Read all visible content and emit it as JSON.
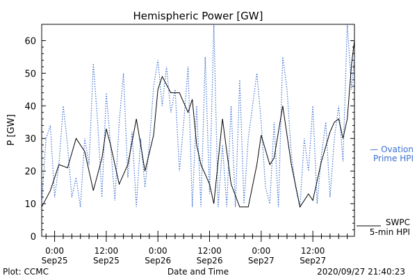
{
  "chart_data": {
    "type": "line",
    "title": "Hemispheric Power [GW]",
    "ylabel": "P [GW]",
    "xlabel": "Date and Time",
    "ylim": [
      0,
      65
    ],
    "yticks": [
      0,
      10,
      20,
      30,
      40,
      50,
      60
    ],
    "xlim": [
      "2020-09-24 21:00",
      "2020-09-27 21:40"
    ],
    "xticks": [
      {
        "time": "2020-09-25 00:00",
        "line1": "0:00",
        "line2": "Sep25"
      },
      {
        "time": "2020-09-25 12:00",
        "line1": "12:00",
        "line2": "Sep25"
      },
      {
        "time": "2020-09-26 00:00",
        "line1": "0:00",
        "line2": "Sep26"
      },
      {
        "time": "2020-09-26 12:00",
        "line1": "12:00",
        "line2": "Sep26"
      },
      {
        "time": "2020-09-27 00:00",
        "line1": "0:00",
        "line2": "Sep27"
      },
      {
        "time": "2020-09-27 12:00",
        "line1": "12:00",
        "line2": "Sep27"
      }
    ],
    "grid": false,
    "series": [
      {
        "name": "SWPC 5-min HPI",
        "style": "solid",
        "color": "#000000",
        "x": [
          "2020-09-24 21:00",
          "2020-09-24 23:00",
          "2020-09-25 01:00",
          "2020-09-25 03:00",
          "2020-09-25 05:00",
          "2020-09-25 07:00",
          "2020-09-25 09:00",
          "2020-09-25 11:00",
          "2020-09-25 12:00",
          "2020-09-25 13:00",
          "2020-09-25 15:00",
          "2020-09-25 17:00",
          "2020-09-25 19:00",
          "2020-09-25 21:00",
          "2020-09-25 23:00",
          "2020-09-26 00:00",
          "2020-09-26 01:00",
          "2020-09-26 03:00",
          "2020-09-26 05:00",
          "2020-09-26 07:00",
          "2020-09-26 08:00",
          "2020-09-26 09:00",
          "2020-09-26 10:00",
          "2020-09-26 12:00",
          "2020-09-26 13:00",
          "2020-09-26 15:00",
          "2020-09-26 17:00",
          "2020-09-26 19:00",
          "2020-09-26 21:00",
          "2020-09-26 23:00",
          "2020-09-27 00:00",
          "2020-09-27 02:00",
          "2020-09-27 03:00",
          "2020-09-27 05:00",
          "2020-09-27 07:00",
          "2020-09-27 09:00",
          "2020-09-27 11:00",
          "2020-09-27 12:00",
          "2020-09-27 14:00",
          "2020-09-27 16:00",
          "2020-09-27 17:00",
          "2020-09-27 18:00",
          "2020-09-27 19:00",
          "2020-09-27 20:00",
          "2020-09-27 21:00",
          "2020-09-27 21:40"
        ],
        "y": [
          9,
          14,
          22,
          21,
          30,
          26,
          14,
          24,
          33,
          28,
          16,
          22,
          36,
          20,
          31,
          45,
          49,
          44,
          44,
          38,
          42,
          28,
          22,
          16,
          10,
          36,
          16,
          9,
          9,
          22,
          31,
          22,
          24,
          40,
          22,
          9,
          13,
          11,
          23,
          32,
          35,
          36,
          30,
          36,
          53,
          60
        ]
      },
      {
        "name": "Ovation Prime HPI",
        "style": "dashed",
        "color": "#3a6fd0",
        "x": [
          "2020-09-24 21:00",
          "2020-09-24 22:00",
          "2020-09-24 23:00",
          "2020-09-25 00:00",
          "2020-09-25 01:00",
          "2020-09-25 02:00",
          "2020-09-25 03:00",
          "2020-09-25 04:00",
          "2020-09-25 05:00",
          "2020-09-25 06:00",
          "2020-09-25 07:00",
          "2020-09-25 08:00",
          "2020-09-25 09:00",
          "2020-09-25 10:00",
          "2020-09-25 11:00",
          "2020-09-25 12:00",
          "2020-09-25 13:00",
          "2020-09-25 14:00",
          "2020-09-25 15:00",
          "2020-09-25 16:00",
          "2020-09-25 17:00",
          "2020-09-25 18:00",
          "2020-09-25 19:00",
          "2020-09-25 20:00",
          "2020-09-25 21:00",
          "2020-09-25 22:00",
          "2020-09-25 23:00",
          "2020-09-26 00:00",
          "2020-09-26 01:00",
          "2020-09-26 02:00",
          "2020-09-26 03:00",
          "2020-09-26 04:00",
          "2020-09-26 05:00",
          "2020-09-26 06:00",
          "2020-09-26 07:00",
          "2020-09-26 08:00",
          "2020-09-26 09:00",
          "2020-09-26 10:00",
          "2020-09-26 11:00",
          "2020-09-26 12:00",
          "2020-09-26 13:00",
          "2020-09-26 14:00",
          "2020-09-26 15:00",
          "2020-09-26 16:00",
          "2020-09-26 17:00",
          "2020-09-26 18:00",
          "2020-09-26 19:00",
          "2020-09-26 20:00",
          "2020-09-26 21:00",
          "2020-09-26 22:00",
          "2020-09-26 23:00",
          "2020-09-27 00:00",
          "2020-09-27 01:00",
          "2020-09-27 02:00",
          "2020-09-27 03:00",
          "2020-09-27 04:00",
          "2020-09-27 05:00",
          "2020-09-27 06:00",
          "2020-09-27 07:00",
          "2020-09-27 08:00",
          "2020-09-27 09:00",
          "2020-09-27 10:00",
          "2020-09-27 11:00",
          "2020-09-27 12:00",
          "2020-09-27 13:00",
          "2020-09-27 14:00",
          "2020-09-27 15:00",
          "2020-09-27 16:00",
          "2020-09-27 17:00",
          "2020-09-27 18:00",
          "2020-09-27 19:00",
          "2020-09-27 20:00",
          "2020-09-27 21:00",
          "2020-09-27 21:40"
        ],
        "y": [
          10,
          30,
          34,
          12,
          22,
          40,
          28,
          12,
          18,
          9,
          30,
          22,
          53,
          35,
          12,
          44,
          28,
          11,
          35,
          50,
          18,
          32,
          9,
          30,
          15,
          28,
          46,
          54,
          40,
          52,
          38,
          45,
          20,
          35,
          52,
          9,
          40,
          9,
          55,
          13,
          65,
          9,
          28,
          9,
          40,
          9,
          48,
          10,
          30,
          40,
          50,
          35,
          15,
          10,
          35,
          9,
          55,
          45,
          25,
          15,
          9,
          30,
          20,
          40,
          10,
          25,
          35,
          12,
          30,
          40,
          23,
          65,
          45,
          55
        ]
      }
    ],
    "legend": [
      {
        "line1": "— Ovation",
        "line2": "Prime HPI"
      },
      {
        "line1": "SWPC",
        "line2": "5-min HPI"
      }
    ],
    "legend_position": "right"
  },
  "footer": {
    "plot_credit": "Plot: CCMC",
    "timestamp": "2020/09/27 21:40:23"
  }
}
